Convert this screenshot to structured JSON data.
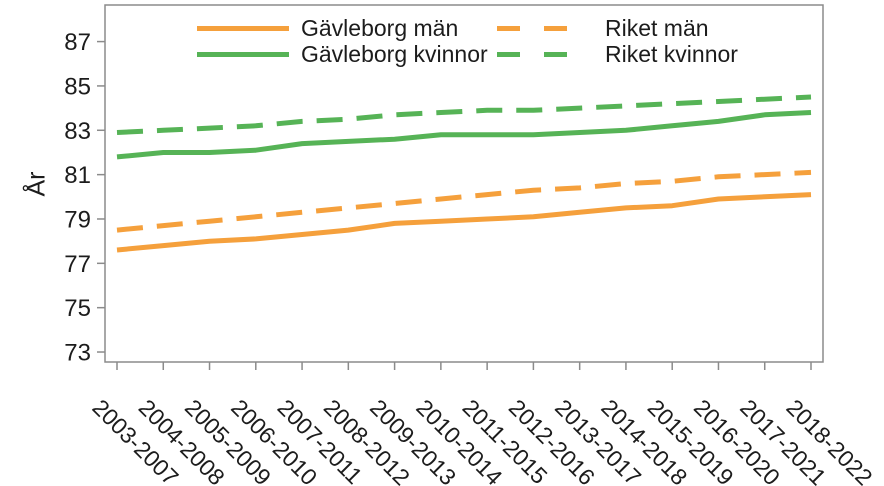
{
  "figure": {
    "ylabel": "År"
  },
  "palette": {
    "orange": "#F5A03C",
    "green": "#56B356",
    "axis": "#8B8B8B",
    "text": "#1C1C1C",
    "background": "#FFFFFF"
  },
  "legend": {
    "items": [
      {
        "id": "gavleborg-man",
        "label": "Gävleborg män",
        "color": "#F5A03C",
        "style": "solid"
      },
      {
        "id": "gavleborg-kvinnor",
        "label": "Gävleborg kvinnor",
        "color": "#56B356",
        "style": "solid"
      },
      {
        "id": "riket-man",
        "label": "Riket män",
        "color": "#F5A03C",
        "style": "dashed"
      },
      {
        "id": "riket-kvinnor",
        "label": "Riket kvinnor",
        "color": "#56B356",
        "style": "dashed"
      }
    ]
  },
  "chart_data": {
    "type": "line",
    "title": "",
    "xlabel": "",
    "ylabel": "År",
    "categories": [
      "2003-2007",
      "2004-2008",
      "2005-2009",
      "2006-2010",
      "2007-2011",
      "2008-2012",
      "2009-2013",
      "2010-2014",
      "2011-2015",
      "2012-2016",
      "2013-2017",
      "2014-2018",
      "2015-2019",
      "2016-2020",
      "2017-2021",
      "2018-2022"
    ],
    "yticks": [
      73,
      75,
      77,
      79,
      81,
      83,
      85,
      87
    ],
    "ylim": [
      72.55,
      88.65
    ],
    "grid": false,
    "legend_position": "top",
    "x_tick_rotation": 45,
    "series": [
      {
        "name": "Gävleborg män",
        "id": "gavleborg-man",
        "color": "#F5A03C",
        "dash": false,
        "values": [
          77.6,
          77.8,
          78.0,
          78.1,
          78.3,
          78.5,
          78.8,
          78.9,
          79.0,
          79.1,
          79.3,
          79.5,
          79.6,
          79.9,
          80.0,
          80.1
        ]
      },
      {
        "name": "Gävleborg kvinnor",
        "id": "gavleborg-kvinnor",
        "color": "#56B356",
        "dash": false,
        "values": [
          81.8,
          82.0,
          82.0,
          82.1,
          82.4,
          82.5,
          82.6,
          82.8,
          82.8,
          82.8,
          82.9,
          83.0,
          83.2,
          83.4,
          83.7,
          83.8
        ]
      },
      {
        "name": "Riket män",
        "id": "riket-man",
        "color": "#F5A03C",
        "dash": true,
        "values": [
          78.5,
          78.7,
          78.9,
          79.1,
          79.3,
          79.5,
          79.7,
          79.9,
          80.1,
          80.3,
          80.4,
          80.6,
          80.7,
          80.9,
          81.0,
          81.1
        ]
      },
      {
        "name": "Riket kvinnor",
        "id": "riket-kvinnor",
        "color": "#56B356",
        "dash": true,
        "values": [
          82.9,
          83.0,
          83.1,
          83.2,
          83.4,
          83.5,
          83.7,
          83.8,
          83.9,
          83.9,
          84.0,
          84.1,
          84.2,
          84.3,
          84.4,
          84.5
        ]
      }
    ]
  }
}
